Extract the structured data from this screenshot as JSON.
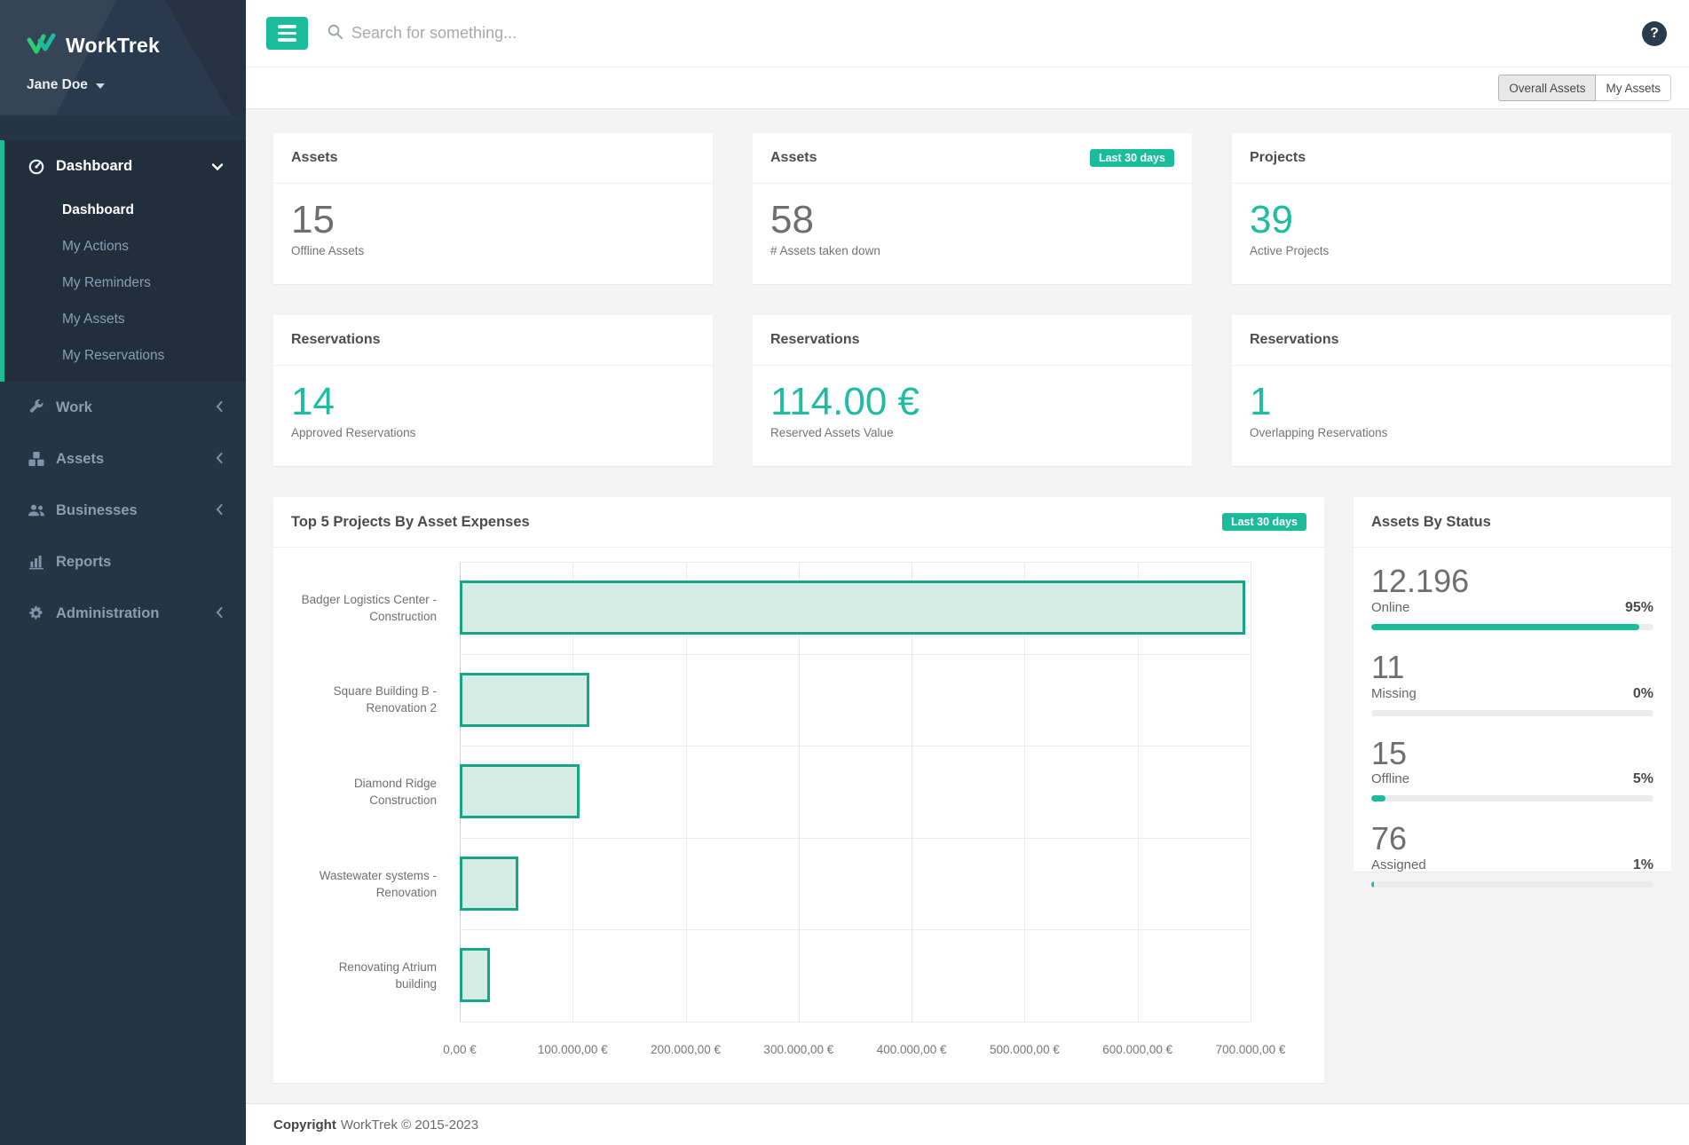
{
  "app": {
    "brand": "WorkTrek",
    "user": "Jane Doe"
  },
  "topbar": {
    "search_placeholder": "Search for something...",
    "help_label": "?"
  },
  "view_toggle": {
    "options": [
      "Overall Assets",
      "My Assets"
    ],
    "selected": "Overall Assets"
  },
  "sidebar": {
    "dashboard_group": {
      "label": "Dashboard",
      "icon": "gauge-icon",
      "expanded": true
    },
    "sub_items": [
      {
        "label": "Dashboard",
        "active": true
      },
      {
        "label": "My Actions",
        "active": false
      },
      {
        "label": "My Reminders",
        "active": false
      },
      {
        "label": "My Assets",
        "active": false
      },
      {
        "label": "My Reservations",
        "active": false
      }
    ],
    "items": [
      {
        "label": "Work",
        "icon": "wrench-icon",
        "collapsible": true
      },
      {
        "label": "Assets",
        "icon": "cubes-icon",
        "collapsible": true
      },
      {
        "label": "Businesses",
        "icon": "users-icon",
        "collapsible": true
      },
      {
        "label": "Reports",
        "icon": "bar-chart-icon",
        "collapsible": false
      },
      {
        "label": "Administration",
        "icon": "gear-icon",
        "collapsible": true
      }
    ]
  },
  "cards": [
    {
      "title": "Assets",
      "badge": "",
      "value": "15",
      "label": "Offline Assets",
      "accent": false
    },
    {
      "title": "Assets",
      "badge": "Last 30 days",
      "value": "58",
      "label": "# Assets taken down",
      "accent": false
    },
    {
      "title": "Projects",
      "badge": "",
      "value": "39",
      "label": "Active Projects",
      "accent": true
    },
    {
      "title": "Reservations",
      "badge": "",
      "value": "14",
      "label": "Approved Reservations",
      "accent": true
    },
    {
      "title": "Reservations",
      "badge": "",
      "value": "114.00 €",
      "label": "Reserved Assets Value",
      "accent": true
    },
    {
      "title": "Reservations",
      "badge": "",
      "value": "1",
      "label": "Overlapping Reservations",
      "accent": true
    }
  ],
  "chart_data": {
    "type": "bar",
    "orientation": "horizontal",
    "title": "Top 5 Projects By Asset Expenses",
    "badge": "Last 30 days",
    "categories": [
      "Badger Logistics Center - Construction",
      "Square Building B - Renovation 2",
      "Diamond Ridge Construction",
      "Wastewater systems - Renovation",
      "Renovating Atrium building"
    ],
    "label_lines": [
      [
        "Badger Logistics Center -",
        "Construction"
      ],
      [
        "Square Building B -",
        "Renovation 2"
      ],
      [
        "Diamond Ridge",
        "Construction"
      ],
      [
        "Wastewater systems -",
        "Renovation"
      ],
      [
        "Renovating Atrium",
        "building"
      ]
    ],
    "values": [
      695000,
      115000,
      106000,
      52000,
      27000
    ],
    "xlim": [
      0,
      700000
    ],
    "x_tick_labels": [
      "0,00 €",
      "100.000,00 €",
      "200.000,00 €",
      "300.000,00 €",
      "400.000,00 €",
      "500.000,00 €",
      "600.000,00 €",
      "700.000,00 €"
    ],
    "grid": true,
    "legend": "none",
    "bar_fill": "#d5ece4",
    "bar_border": "#17a589"
  },
  "assets_by_status": {
    "title": "Assets By Status",
    "items": [
      {
        "count": "12.196",
        "label": "Online",
        "percent": "95%",
        "fill": 95
      },
      {
        "count": "11",
        "label": "Missing",
        "percent": "0%",
        "fill": 0
      },
      {
        "count": "15",
        "label": "Offline",
        "percent": "5%",
        "fill": 5
      },
      {
        "count": "76",
        "label": "Assigned",
        "percent": "1%",
        "fill": 1
      }
    ]
  },
  "footer": {
    "bold": "Copyright",
    "text": "WorkTrek © 2015-2023"
  },
  "colors": {
    "accent": "#1abc9c",
    "sidebar_bg": "#253545",
    "content_bg": "#f4f4f4"
  }
}
